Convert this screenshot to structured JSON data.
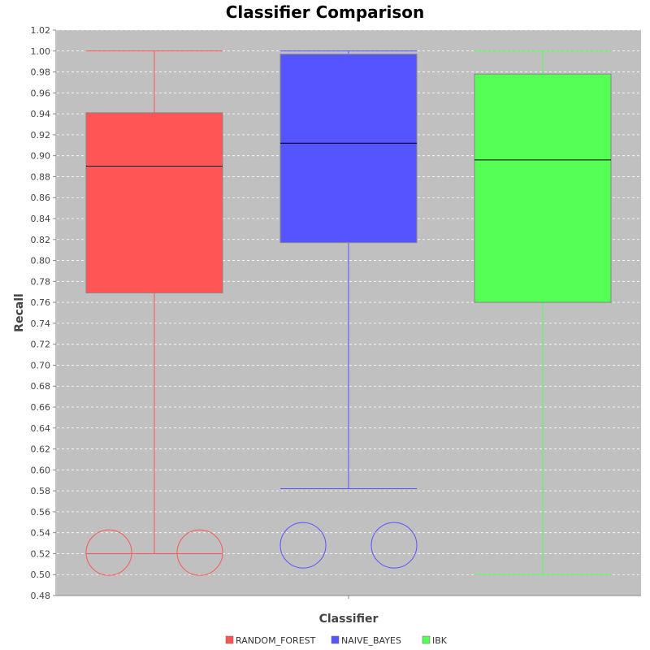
{
  "chart_data": {
    "type": "boxplot",
    "title": "Classifier Comparison",
    "xlabel": "Classifier",
    "ylabel": "Recall",
    "ylim": [
      0.48,
      1.02
    ],
    "yticks": [
      "0.48",
      "0.50",
      "0.52",
      "0.54",
      "0.56",
      "0.58",
      "0.60",
      "0.62",
      "0.64",
      "0.66",
      "0.68",
      "0.70",
      "0.72",
      "0.74",
      "0.76",
      "0.78",
      "0.80",
      "0.82",
      "0.84",
      "0.86",
      "0.88",
      "0.90",
      "0.92",
      "0.94",
      "0.96",
      "0.98",
      "1.00",
      "1.02"
    ],
    "grid": true,
    "legend_position": "bottom",
    "categories": [
      "Classifier"
    ],
    "series": [
      {
        "name": "RANDOM_FOREST",
        "color": "#ff5555",
        "q1": 0.769,
        "median": 0.89,
        "q3": 0.941,
        "whisker_low": 0.52,
        "whisker_high": 1.0,
        "outliers": [
          0.521,
          0.521
        ]
      },
      {
        "name": "NAIVE_BAYES",
        "color": "#5555ff",
        "q1": 0.817,
        "median": 0.912,
        "q3": 0.997,
        "whisker_low": 0.582,
        "whisker_high": 1.0,
        "outliers": [
          0.528,
          0.528
        ]
      },
      {
        "name": "IBK",
        "color": "#55ff55",
        "q1": 0.76,
        "median": 0.896,
        "q3": 0.978,
        "whisker_low": 0.5,
        "whisker_high": 1.0,
        "outliers": []
      }
    ]
  }
}
